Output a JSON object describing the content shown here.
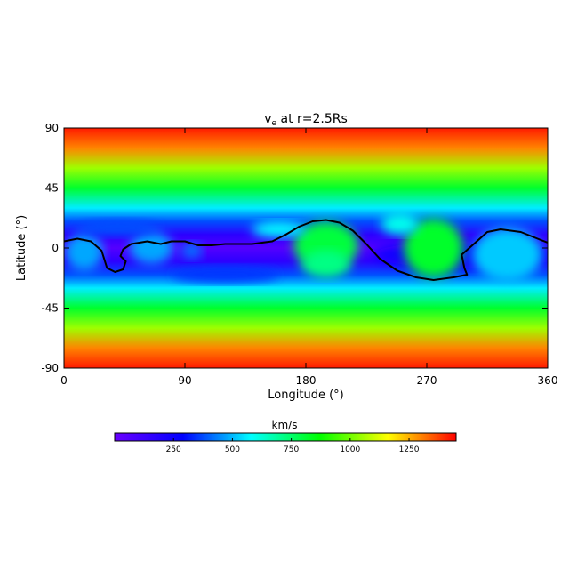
{
  "chart_data": {
    "type": "heatmap",
    "title": "v",
    "title_subscript": "e",
    "title_rest": " at r=2.5Rs",
    "xlabel": "Longitude (°)",
    "ylabel": "Latitude (°)",
    "xlim": [
      0,
      360
    ],
    "ylim": [
      -90,
      90
    ],
    "x_ticks": [
      "0",
      "90",
      "180",
      "270",
      "360"
    ],
    "x_tick_values": [
      0,
      90,
      180,
      270,
      360
    ],
    "y_ticks": [
      "90",
      "45",
      "0",
      "-45",
      "-90"
    ],
    "y_tick_values": [
      90,
      45,
      0,
      -45,
      -90
    ],
    "colorbar": {
      "label": "km/s",
      "range": [
        0,
        1450
      ],
      "ticks": [
        "250",
        "500",
        "750",
        "1000",
        "1250"
      ],
      "tick_values": [
        250,
        500,
        750,
        1000,
        1250
      ],
      "placement": "bottom",
      "colormap": [
        "#6a00ff",
        "#0000ff",
        "#00ffff",
        "#00ff00",
        "#ffff00",
        "#ff0000"
      ]
    },
    "contour_line": {
      "color": "#000000",
      "description_points": [
        [
          0,
          5
        ],
        [
          10,
          7
        ],
        [
          20,
          5
        ],
        [
          28,
          -2
        ],
        [
          32,
          -15
        ],
        [
          38,
          -18
        ],
        [
          44,
          -16
        ],
        [
          46,
          -10
        ],
        [
          42,
          -6
        ],
        [
          44,
          -1
        ],
        [
          50,
          3
        ],
        [
          62,
          5
        ],
        [
          72,
          3
        ],
        [
          80,
          5
        ],
        [
          90,
          5
        ],
        [
          100,
          2
        ],
        [
          110,
          2
        ],
        [
          120,
          3
        ],
        [
          140,
          3
        ],
        [
          155,
          5
        ],
        [
          165,
          10
        ],
        [
          175,
          16
        ],
        [
          185,
          20
        ],
        [
          195,
          21
        ],
        [
          205,
          19
        ],
        [
          215,
          13
        ],
        [
          225,
          3
        ],
        [
          235,
          -8
        ],
        [
          248,
          -17
        ],
        [
          262,
          -22
        ],
        [
          275,
          -24
        ],
        [
          290,
          -22
        ],
        [
          300,
          -20
        ],
        [
          298,
          -15
        ],
        [
          296,
          -5
        ],
        [
          305,
          3
        ],
        [
          315,
          12
        ],
        [
          325,
          14
        ],
        [
          340,
          12
        ],
        [
          355,
          6
        ],
        [
          360,
          4
        ]
      ]
    },
    "features": [
      {
        "kind": "slow-band",
        "lat_center": 0,
        "note": "low speed band around equator"
      },
      {
        "kind": "fast-pole",
        "lat_center": 90,
        "value": 1400
      },
      {
        "kind": "fast-pole",
        "lat_center": -90,
        "value": 1400
      }
    ]
  }
}
